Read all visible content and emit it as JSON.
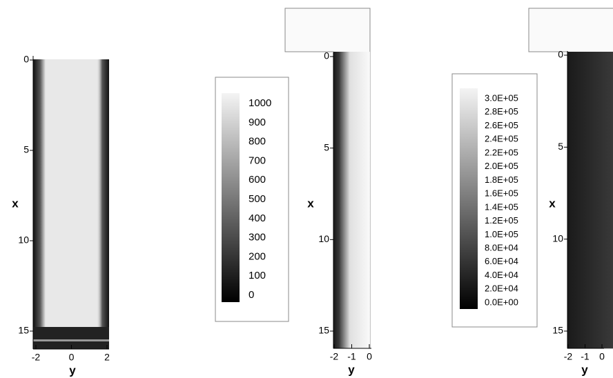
{
  "panels": [
    {
      "ylabel": "x",
      "xlabel": "y",
      "yticks": [
        "0",
        "5",
        "10",
        "15"
      ],
      "xticks": [
        "-2",
        "0",
        "2"
      ]
    },
    {
      "ylabel": "x",
      "xlabel": "y",
      "yticks": [
        "0",
        "5",
        "10",
        "15"
      ],
      "xticks": [
        "-2",
        "-1",
        "0"
      ],
      "legend": [
        "1000",
        "900",
        "800",
        "700",
        "600",
        "500",
        "400",
        "300",
        "200",
        "100",
        "0"
      ]
    },
    {
      "ylabel": "x",
      "xlabel": "y",
      "yticks": [
        "0",
        "5",
        "10",
        "15"
      ],
      "xticks": [
        "-2",
        "-1",
        "0"
      ],
      "legend": [
        "3.0E+05",
        "2.8E+05",
        "2.6E+05",
        "2.4E+05",
        "2.2E+05",
        "2.0E+05",
        "1.8E+05",
        "1.6E+05",
        "1.4E+05",
        "1.2E+05",
        "1.0E+05",
        "8.0E+04",
        "6.0E+04",
        "4.0E+04",
        "2.0E+04",
        "0.0E+00"
      ]
    }
  ]
}
